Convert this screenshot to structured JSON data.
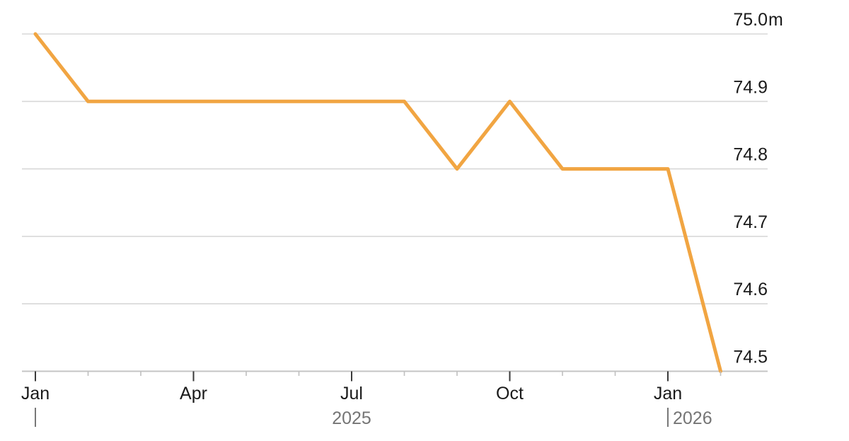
{
  "chart_data": {
    "type": "line",
    "title": "",
    "unit_suffix": "m",
    "x": [
      "Jan 2025",
      "Feb 2025",
      "Mar 2025",
      "Apr 2025",
      "May 2025",
      "Jun 2025",
      "Jul 2025",
      "Aug 2025",
      "Sep 2025",
      "Oct 2025",
      "Nov 2025",
      "Dec 2025",
      "Jan 2026",
      "Feb 2026"
    ],
    "values": [
      75.0,
      74.9,
      74.9,
      74.9,
      74.9,
      74.9,
      74.9,
      74.9,
      74.8,
      74.9,
      74.8,
      74.8,
      74.8,
      74.5
    ],
    "ylim": [
      74.5,
      75.0
    ],
    "grid": true,
    "legend": null,
    "yticks": [
      {
        "value": 75.0,
        "label": "75.0",
        "suffix": "m"
      },
      {
        "value": 74.9,
        "label": "74.9",
        "suffix": ""
      },
      {
        "value": 74.8,
        "label": "74.8",
        "suffix": ""
      },
      {
        "value": 74.7,
        "label": "74.7",
        "suffix": ""
      },
      {
        "value": 74.6,
        "label": "74.6",
        "suffix": ""
      },
      {
        "value": 74.5,
        "label": "74.5",
        "suffix": ""
      }
    ],
    "xticks_major": [
      {
        "index": 0,
        "label": "Jan"
      },
      {
        "index": 3,
        "label": "Apr"
      },
      {
        "index": 6,
        "label": "Jul"
      },
      {
        "index": 9,
        "label": "Oct"
      },
      {
        "index": 12,
        "label": "Jan"
      }
    ],
    "xticks_minor_indices": [
      1,
      2,
      4,
      5,
      7,
      8,
      10,
      11,
      13
    ],
    "years": [
      {
        "label": "2025",
        "marker_index": 0,
        "placement": "center",
        "center_index": 6
      },
      {
        "label": "2026",
        "marker_index": 12,
        "placement": "after_marker"
      }
    ],
    "colors": {
      "line": "#F1A542",
      "grid": "#D8D8D8",
      "axis": "#C4C4C4",
      "tick_major": "#3A3A3A",
      "tick_minor": "#C0C0C0",
      "axis_label": "#1A1A1A",
      "year_label": "#757575",
      "year_marker": "#6A6A6A",
      "background": "#FFFFFF"
    }
  }
}
